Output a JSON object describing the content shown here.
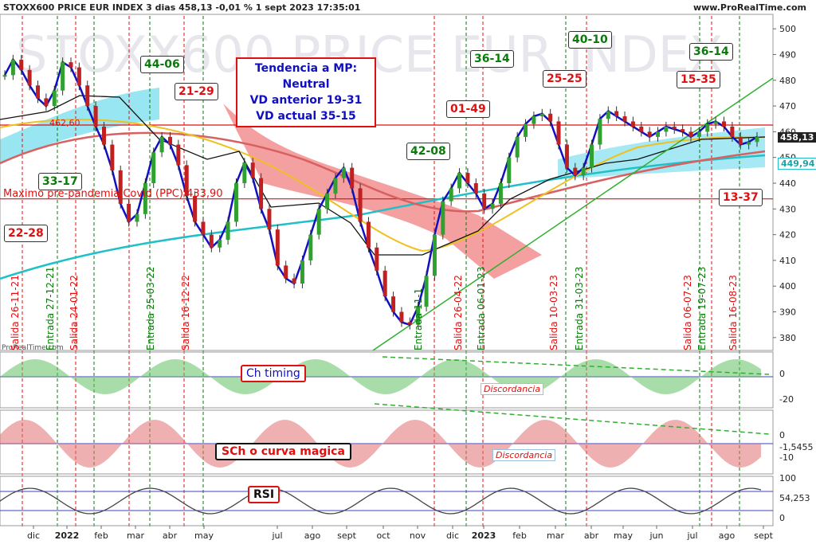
{
  "header": {
    "title": "STOXX600 PRICE EUR INDEX 3 dias 458,13 -0,01 % 1 sept 2023 17:35:01",
    "site": "www.ProRealTime.com"
  },
  "watermark": "STOXX600 PRICE EUR INDEX",
  "logo_text": "ProRealTime.com",
  "trend_box": {
    "line1": "Tendencia a MP: Neutral",
    "line2": "VD anterior 19-31",
    "line3": "VD actual 35-15"
  },
  "pandemic_label": "Maximo pre-pandemia Covid (PPC) 433,90",
  "level_label_462": "462,60",
  "score_boxes": [
    {
      "text": "22-28",
      "kind": "r"
    },
    {
      "text": "33-17",
      "kind": "g"
    },
    {
      "text": "44-06",
      "kind": "g"
    },
    {
      "text": "21-29",
      "kind": "r"
    },
    {
      "text": "42-08",
      "kind": "g"
    },
    {
      "text": "01-49",
      "kind": "r"
    },
    {
      "text": "36-14",
      "kind": "g"
    },
    {
      "text": "25-25",
      "kind": "r"
    },
    {
      "text": "40-10",
      "kind": "g"
    },
    {
      "text": "36-14",
      "kind": "g"
    },
    {
      "text": "15-35",
      "kind": "r"
    },
    {
      "text": "13-37",
      "kind": "r"
    }
  ],
  "signals": [
    {
      "text": "Salida 26-11-21",
      "color": "#e01010"
    },
    {
      "text": "Entrada 27-12-21",
      "color": "#0a7a0a"
    },
    {
      "text": "Salida 24-01-22",
      "color": "#e01010"
    },
    {
      "text": "Entrada 25-03-22",
      "color": "#0a7a0a"
    },
    {
      "text": "Salida 16-12-22",
      "color": "#e01010"
    },
    {
      "text": "Entrada 11-1",
      "color": "#0a7a0a"
    },
    {
      "text": "Salida 26-04-22",
      "color": "#e01010"
    },
    {
      "text": "Entrada 06-01-23",
      "color": "#0a7a0a"
    },
    {
      "text": "Salida 10-03-23",
      "color": "#e01010"
    },
    {
      "text": "Entrada 31-03-23",
      "color": "#0a7a0a"
    },
    {
      "text": "Salida 06-07-23",
      "color": "#e01010"
    },
    {
      "text": "Entrada 19-07-23",
      "color": "#0a7a0a"
    },
    {
      "text": "Salida 16-08-23",
      "color": "#e01010"
    }
  ],
  "indicators": {
    "ch_timing": "Ch timing",
    "sch": "SCh o curva magica",
    "rsi": "RSI",
    "discordancia": "Discordancia"
  },
  "colors": {
    "red": "#e01010",
    "green": "#0a7a0a",
    "blue": "#1010c0",
    "cyan": "#20c0c8",
    "kumo_red": "#f08080",
    "kumo_cyan": "#80e0f0"
  },
  "chart_data": [
    {
      "type": "line",
      "title": "STOXX600 PRICE EUR INDEX",
      "y_ticks": [
        "500",
        "490",
        "480",
        "470",
        "460",
        "450",
        "440",
        "430",
        "420",
        "410",
        "400",
        "390",
        "380"
      ],
      "ylim": [
        375,
        505
      ],
      "x_ticks": [
        "dic",
        "2022",
        "feb",
        "mar",
        "abr",
        "may",
        "jul",
        "ago",
        "sept",
        "oct",
        "nov",
        "dic",
        "2023",
        "feb",
        "mar",
        "abr",
        "may",
        "jun",
        "jul",
        "ago",
        "sept"
      ],
      "last_price": "458,13",
      "price_tags": [
        "458,13",
        "449,94"
      ],
      "levels": [
        {
          "name": "Maximo pre-pandemia Covid (PPC)",
          "value": 433.9
        },
        {
          "value": 462.6
        }
      ],
      "series": [
        {
          "values": [
            482,
            488,
            484,
            478,
            473,
            470,
            476,
            487,
            485,
            478,
            470,
            462,
            455,
            445,
            432,
            425,
            428,
            440,
            452,
            458,
            455,
            447,
            435,
            425,
            420,
            415,
            418,
            425,
            440,
            448,
            442,
            430,
            422,
            408,
            403,
            401,
            410,
            420,
            430,
            436,
            442,
            446,
            438,
            425,
            415,
            406,
            396,
            390,
            386,
            385,
            392,
            404,
            420,
            433,
            438,
            444,
            440,
            436,
            430,
            432,
            440,
            450,
            458,
            463,
            466,
            467,
            464,
            455,
            446,
            443,
            446,
            455,
            465,
            468,
            466,
            464,
            462,
            460,
            458,
            460,
            462,
            461,
            460,
            458,
            460,
            463,
            464,
            462,
            458,
            455,
            456,
            458
          ]
        }
      ]
    },
    {
      "type": "area",
      "title": "Ch timing",
      "y_ticks": [
        "0",
        "-20"
      ]
    },
    {
      "type": "area",
      "title": "SCh o curva magica",
      "y_ticks": [
        "0",
        "-1,5455",
        "-10"
      ]
    },
    {
      "type": "line",
      "title": "RSI",
      "y_ticks": [
        "100",
        "54,253",
        "0"
      ]
    }
  ]
}
